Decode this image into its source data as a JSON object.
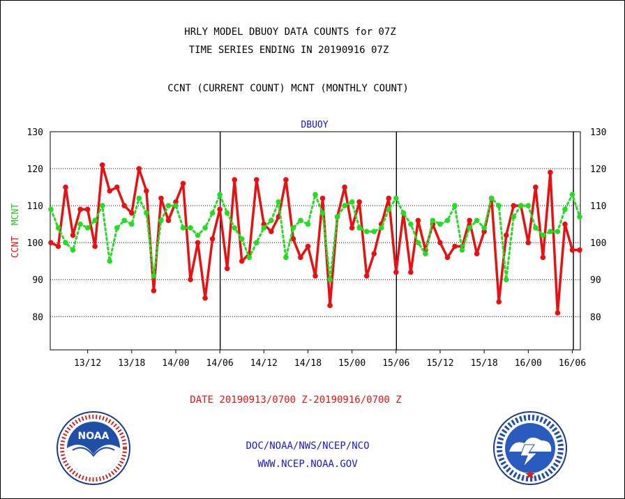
{
  "title_line1": "HRLY MODEL DBUOY DATA COUNTS for 07Z",
  "title_line2": "TIME SERIES ENDING IN 20190916 07Z",
  "subtitle": "CCNT (CURRENT COUNT) MCNT (MONTHLY COUNT)",
  "panel_label": "DBUOY",
  "y_axis_label": {
    "red_part": "CCNT",
    "green_part": "MCNT"
  },
  "date_range": "DATE 20190913/0700 Z-20190916/0700 Z",
  "credit_line1": "DOC/NOAA/NWS/NCEP/NCO",
  "credit_line2": "WWW.NCEP.NOAA.GOV",
  "colors": {
    "ccnt": "#e81010",
    "mcnt": "#22dd22",
    "axis_text": "#000000",
    "panel_label": "#1414c8",
    "credits": "#1a1acd"
  },
  "logos": {
    "left": "noaa-logo",
    "right": "national-weather-service-logo"
  },
  "chart_data": {
    "type": "line",
    "ylim": [
      71,
      130
    ],
    "yticks": [
      80,
      90,
      100,
      110,
      120,
      130
    ],
    "grid": "horizontal dotted",
    "xticks": [
      "13/12",
      "13/18",
      "14/00",
      "14/06",
      "14/12",
      "14/18",
      "15/00",
      "15/06",
      "15/12",
      "15/18",
      "16/00",
      "16/06"
    ],
    "day_boundaries": [
      "14/00",
      "15/00",
      "16/00"
    ],
    "n_points": 73,
    "series": [
      {
        "name": "CCNT",
        "color": "#e81010",
        "style": "solid",
        "values": [
          100,
          99,
          115,
          102,
          109,
          109,
          99,
          121,
          114,
          115,
          110,
          108,
          120,
          114,
          87,
          112,
          106,
          111,
          116,
          90,
          100,
          85,
          101,
          109,
          93,
          117,
          95,
          97,
          117,
          105,
          103,
          107,
          117,
          101,
          96,
          99,
          91,
          112,
          83,
          107,
          115,
          104,
          111,
          91,
          97,
          105,
          112,
          92,
          108,
          92,
          106,
          98,
          105,
          100,
          96,
          99,
          99,
          106,
          97,
          103,
          112,
          84,
          102,
          110,
          110,
          100,
          115,
          96,
          119,
          81,
          105,
          98,
          98
        ]
      },
      {
        "name": "MCNT",
        "color": "#22dd22",
        "style": "dotted",
        "values": [
          109,
          104,
          100,
          98,
          105,
          104,
          106,
          110,
          95,
          104,
          106,
          105,
          112,
          108,
          91,
          106,
          110,
          110,
          104,
          104,
          102,
          104,
          108,
          113,
          108,
          104,
          101,
          96,
          100,
          104,
          106,
          111,
          96,
          104,
          106,
          105,
          113,
          108,
          90,
          107,
          110,
          111,
          104,
          103,
          103,
          104,
          109,
          112,
          108,
          105,
          100,
          97,
          106,
          105,
          106,
          110,
          98,
          104,
          106,
          104,
          112,
          110,
          90,
          107,
          110,
          110,
          104,
          102,
          103,
          103,
          109,
          113,
          107
        ]
      }
    ]
  }
}
